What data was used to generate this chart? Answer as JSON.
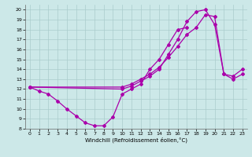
{
  "xlabel": "Windchill (Refroidissement éolien,°C)",
  "bg_color": "#cce8e8",
  "grid_color": "#aacccc",
  "line_color": "#aa00aa",
  "xlim": [
    -0.5,
    23.5
  ],
  "ylim": [
    8,
    20.5
  ],
  "xticks": [
    0,
    1,
    2,
    3,
    4,
    5,
    6,
    7,
    8,
    9,
    10,
    11,
    12,
    13,
    14,
    15,
    16,
    17,
    18,
    19,
    20,
    21,
    22,
    23
  ],
  "yticks": [
    8,
    9,
    10,
    11,
    12,
    13,
    14,
    15,
    16,
    17,
    18,
    19,
    20
  ],
  "line1_x": [
    0,
    1,
    2,
    3,
    4,
    5,
    6,
    7,
    8,
    9,
    10,
    11,
    12,
    13,
    14,
    15,
    16,
    17
  ],
  "line1_y": [
    12.2,
    11.8,
    11.5,
    10.8,
    10.0,
    9.3,
    8.6,
    8.3,
    8.3,
    9.2,
    11.5,
    12.0,
    12.5,
    14.0,
    15.0,
    16.5,
    18.0,
    18.2
  ],
  "line2_x": [
    0,
    10,
    11,
    12,
    13,
    14,
    15,
    16,
    17,
    18,
    19,
    20,
    21,
    22,
    23
  ],
  "line2_y": [
    12.2,
    12.2,
    12.5,
    13.0,
    13.5,
    14.2,
    15.2,
    16.3,
    17.5,
    18.2,
    19.5,
    19.3,
    13.5,
    13.3,
    14.0
  ],
  "line3_x": [
    0,
    10,
    11,
    12,
    13,
    14,
    15,
    16,
    17,
    18,
    19,
    20,
    21,
    22,
    23
  ],
  "line3_y": [
    12.2,
    12.0,
    12.3,
    12.8,
    13.3,
    14.0,
    15.5,
    17.0,
    18.8,
    19.8,
    20.0,
    18.5,
    13.5,
    13.0,
    13.5
  ]
}
